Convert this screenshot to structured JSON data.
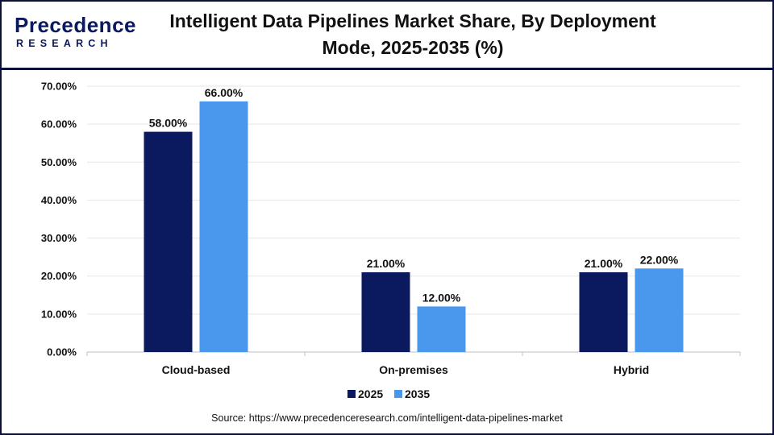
{
  "header": {
    "logo_main": "Precedence",
    "logo_sub": "RESEARCH",
    "title_line1": "Intelligent Data Pipelines Market Share, By Deployment",
    "title_line2": "Mode, 2025-2035 (%)"
  },
  "chart_data": {
    "type": "bar",
    "title": "Intelligent Data Pipelines Market Share, By Deployment Mode, 2025-2035 (%)",
    "categories": [
      "Cloud-based",
      "On-premises",
      "Hybrid"
    ],
    "series": [
      {
        "name": "2025",
        "values": [
          58,
          21,
          21
        ],
        "labels": [
          "58.00%",
          "21.00%",
          "21.00%"
        ],
        "color": "#0b1a5e"
      },
      {
        "name": "2035",
        "values": [
          66,
          12,
          22
        ],
        "labels": [
          "66.00%",
          "12.00%",
          "22.00%"
        ],
        "color": "#4a98ee"
      }
    ],
    "yticks": [
      0,
      10,
      20,
      30,
      40,
      50,
      60,
      70
    ],
    "ytick_labels": [
      "0.00%",
      "10.00%",
      "20.00%",
      "30.00%",
      "40.00%",
      "50.00%",
      "60.00%",
      "70.00%"
    ],
    "ylim": [
      0,
      70
    ],
    "xlabel": "",
    "ylabel": "",
    "grid": true,
    "legend_position": "bottom"
  },
  "footer": {
    "source": "Source: https://www.precedenceresearch.com/intelligent-data-pipelines-market"
  }
}
